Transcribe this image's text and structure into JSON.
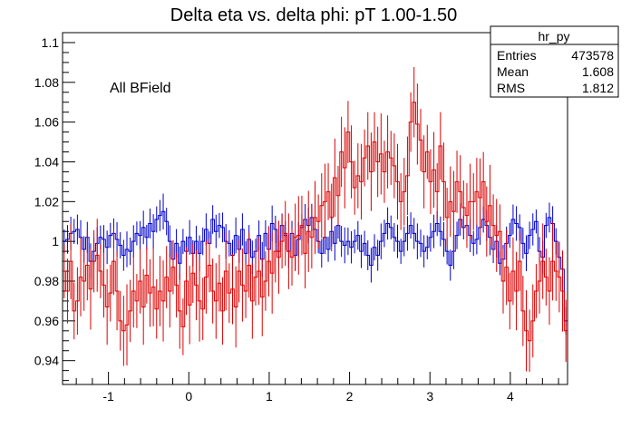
{
  "chart_data": {
    "type": "line",
    "title": "Delta eta vs. delta phi: pT 1.00-1.50",
    "xlabel": "",
    "ylabel": "",
    "xlim": [
      -1.571,
      4.712
    ],
    "ylim": [
      0.928,
      1.105
    ],
    "x_ticks": [
      "-1",
      "0",
      "1",
      "2",
      "3",
      "4"
    ],
    "x_tick_values": [
      -1,
      0,
      1,
      2,
      3,
      4
    ],
    "y_ticks": [
      "0.94",
      "0.96",
      "0.98",
      "1",
      "1.02",
      "1.04",
      "1.06",
      "1.08",
      "1.1"
    ],
    "y_tick_values": [
      0.94,
      0.96,
      0.98,
      1.0,
      1.02,
      1.04,
      1.06,
      1.08,
      1.1
    ],
    "annotation": "All BField",
    "stats_box": {
      "name": "hr_py",
      "rows": [
        {
          "label": "Entries",
          "value": "473578"
        },
        {
          "label": "Mean",
          "value": "1.608"
        },
        {
          "label": "RMS",
          "value": "1.812"
        }
      ]
    },
    "series": [
      {
        "color": "#0000cc",
        "values": [
          1.0,
          1.001,
          1.004,
          1.005,
          1.006,
          1.002,
          0.996,
          1.002,
          0.99,
          0.995,
          0.999,
          1.002,
          1.001,
          0.997,
          1.003,
          1.004,
          1.001,
          0.998,
          0.993,
          0.996,
          0.995,
          1.0,
          1.004,
          1.003,
          1.007,
          1.002,
          1.009,
          1.005,
          1.011,
          1.013,
          1.015,
          1.01,
          1.0,
          0.991,
          0.999,
          0.989,
          1.0,
          0.995,
          1.002,
          0.994,
          1.0,
          0.994,
          1.0,
          1.006,
          0.999,
          1.011,
          1.005,
          1.008,
          1.007,
          1.0,
          0.999,
          0.993,
          1.003,
          0.996,
          1.006,
          0.994,
          1.001,
          0.992,
          0.995,
          1.003,
          0.991,
          1.004,
          0.996,
          1.009,
          1.006,
          0.995,
          1.008,
          1.003,
          0.995,
          1.004,
          0.993,
          1.001,
          1.007,
          1.011,
          1.008,
          1.012,
          1.006,
          1.0,
          0.994,
          1.002,
          0.996,
          1.005,
          0.999,
          1.008,
          1.0,
          0.998,
          1.0,
          0.997,
          1.0,
          1.003,
          0.995,
          0.999,
          0.993,
          0.988,
          0.997,
          0.993,
          1.0,
          1.004,
          1.009,
          1.007,
          1.002,
          1.0,
          0.995,
          1.0,
          1.004,
          1.008,
          1.004,
          1.0,
          0.999,
          0.995,
          0.997,
          1.002,
          1.005,
          1.009,
          1.005,
          1.001,
          0.995,
          0.988,
          0.995,
          1.003,
          1.011,
          1.007,
          1.008,
          1.003,
          0.999,
          1.001,
          1.007,
          1.011,
          1.008,
          1.002,
          0.996,
          1.0,
          0.989,
          0.991,
          0.999,
          1.003,
          1.011,
          1.009,
          1.007,
          0.999,
          0.994,
          1.003,
          1.006,
          1.01,
          0.995,
          0.992,
          1.008,
          1.012,
          1.009,
          1.0,
          0.992,
          0.986,
          0.96
        ]
      },
      {
        "color": "#dd0000",
        "values": [
          0.985,
          0.975,
          0.99,
          0.965,
          0.97,
          0.982,
          0.98,
          0.988,
          0.976,
          0.99,
          0.993,
          0.985,
          0.978,
          0.967,
          0.974,
          0.99,
          0.975,
          0.96,
          0.955,
          0.958,
          0.965,
          0.975,
          0.97,
          0.98,
          0.967,
          0.983,
          0.974,
          0.977,
          0.966,
          0.975,
          0.97,
          0.982,
          0.975,
          0.987,
          0.978,
          0.965,
          0.957,
          0.98,
          0.968,
          0.984,
          0.978,
          0.97,
          0.966,
          0.982,
          0.988,
          0.975,
          0.97,
          0.979,
          0.965,
          0.985,
          0.974,
          0.976,
          0.967,
          0.985,
          0.978,
          0.975,
          0.988,
          0.97,
          0.982,
          0.985,
          0.972,
          0.98,
          0.99,
          0.984,
          0.995,
          0.992,
          1.0,
          1.004,
          0.995,
          0.992,
          1.002,
          1.003,
          1.008,
          0.994,
          1.005,
          1.002,
          1.012,
          1.01,
          1.018,
          1.02,
          1.025,
          1.012,
          1.032,
          1.023,
          1.045,
          1.037,
          1.055,
          1.04,
          1.027,
          1.033,
          1.03,
          1.042,
          1.048,
          1.035,
          1.05,
          1.04,
          1.044,
          1.035,
          1.045,
          1.042,
          1.038,
          1.03,
          1.02,
          1.025,
          1.033,
          1.06,
          1.07,
          1.059,
          1.051,
          1.035,
          1.045,
          1.03,
          1.036,
          1.025,
          1.048,
          1.03,
          1.012,
          1.02,
          1.015,
          1.03,
          1.025,
          1.017,
          1.013,
          1.02,
          1.02,
          1.025,
          1.022,
          1.03,
          1.01,
          1.018,
          1.008,
          1.003,
          1.005,
          0.98,
          0.987,
          0.97,
          0.985,
          0.975,
          0.99,
          0.965,
          0.955,
          0.95,
          0.96,
          0.975,
          0.98,
          0.99,
          0.982,
          0.975,
          0.99,
          0.985,
          0.982,
          0.975,
          0.955
        ]
      }
    ]
  }
}
